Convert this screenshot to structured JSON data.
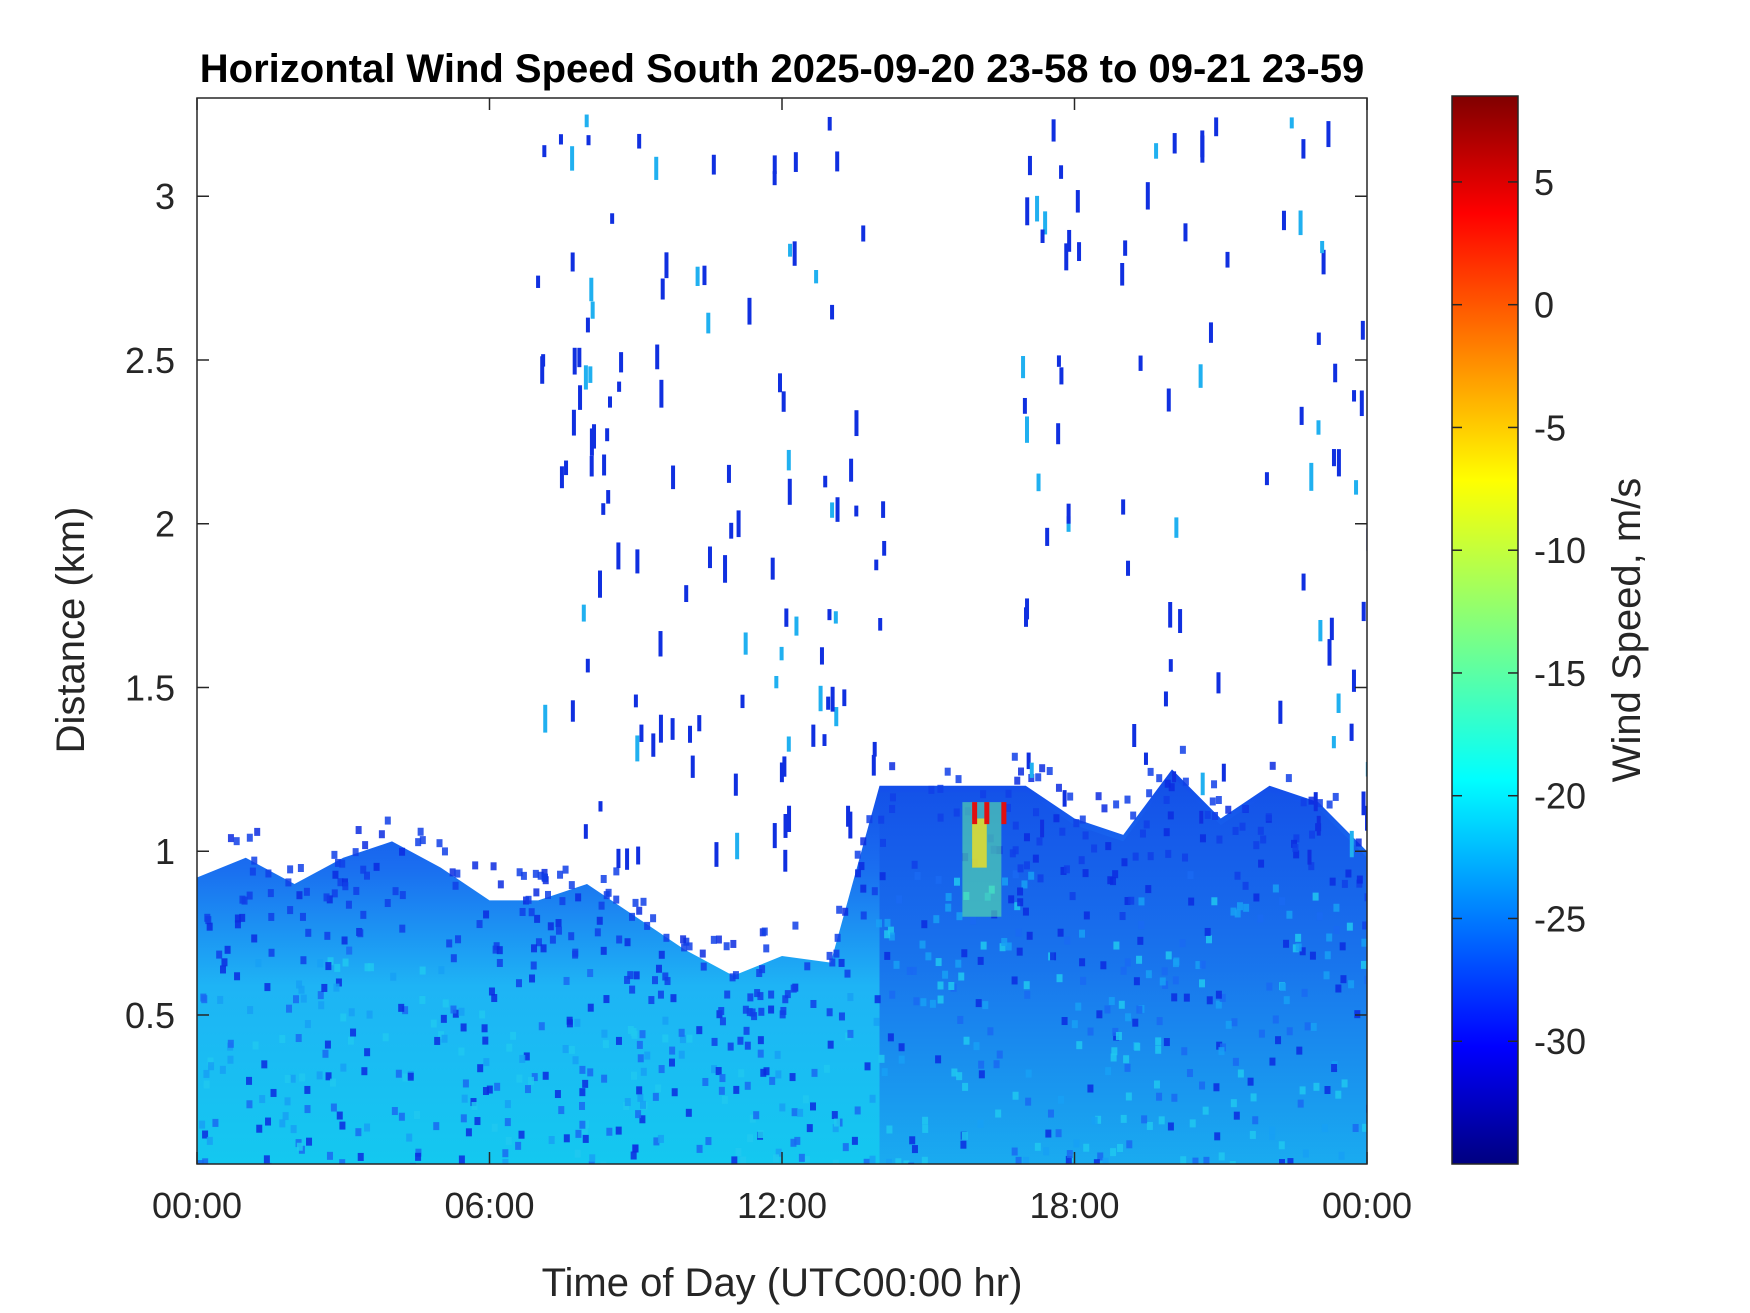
{
  "chart_data": {
    "type": "heatmap",
    "title": "Horizontal Wind Speed South 2025-09-20 23-58 to 09-21 23-59",
    "xlabel": "Time of Day (UTC00:00 hr)",
    "ylabel": "Distance (km)",
    "colorbar_label": "Wind Speed, m/s",
    "x_ticks": [
      "00:00",
      "06:00",
      "12:00",
      "18:00",
      "00:00"
    ],
    "x_tick_hours": [
      0,
      6,
      12,
      18,
      24
    ],
    "xlim_hours": [
      0,
      24
    ],
    "y_ticks": [
      "0.5",
      "1",
      "1.5",
      "2",
      "2.5",
      "3"
    ],
    "y_tick_values": [
      0.5,
      1,
      1.5,
      2,
      2.5,
      3
    ],
    "ylim": [
      0.045,
      3.3
    ],
    "colorbar_ticks": [
      "5",
      "0",
      "-5",
      "-10",
      "-15",
      "-20",
      "-25",
      "-30"
    ],
    "colorbar_tick_values": [
      5,
      0,
      -5,
      -10,
      -15,
      -20,
      -25,
      -30
    ],
    "clim": [
      -35,
      8.5
    ],
    "colormap": "jet",
    "grid": false,
    "data_summary": {
      "boundary_layer_top_km": [
        [
          0,
          0.92
        ],
        [
          1,
          0.98
        ],
        [
          2,
          0.9
        ],
        [
          3,
          0.98
        ],
        [
          4,
          1.03
        ],
        [
          5,
          0.95
        ],
        [
          6,
          0.85
        ],
        [
          7,
          0.85
        ],
        [
          8,
          0.9
        ],
        [
          9,
          0.8
        ],
        [
          10,
          0.7
        ],
        [
          11,
          0.62
        ],
        [
          12,
          0.68
        ],
        [
          13,
          0.66
        ],
        [
          14,
          1.2
        ],
        [
          15,
          1.2
        ],
        [
          16,
          1.2
        ],
        [
          17,
          1.2
        ],
        [
          18,
          1.1
        ],
        [
          19,
          1.05
        ],
        [
          20,
          1.25
        ],
        [
          21,
          1.1
        ],
        [
          22,
          1.2
        ],
        [
          23,
          1.15
        ],
        [
          24,
          1.0
        ]
      ],
      "near_surface_speed_ms": -21,
      "upper_boundary_layer_speed_ms": -28,
      "afternoon_core_speed_ms": -26,
      "localized_maximum_speed_ms": 5,
      "localized_maximum_time_hours": [
        15.9,
        16.5
      ],
      "localized_maximum_distance_km": [
        0.95,
        1.15
      ],
      "upper_returns_hours": [
        7.5,
        8.5,
        9.5,
        10.5,
        11.5,
        12.5,
        13.5,
        17.5,
        19.5,
        20.5,
        22.5,
        23.5
      ],
      "upper_returns_max_km": 3.25
    }
  }
}
